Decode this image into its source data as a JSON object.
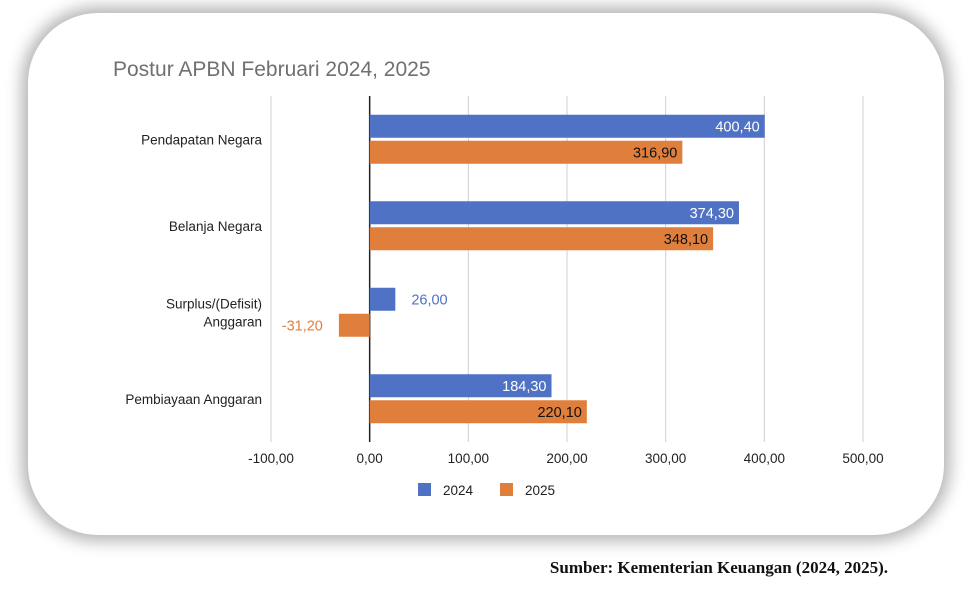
{
  "source_caption": "Sumber: Kementerian Keuangan (2024, 2025).",
  "chart_data": {
    "type": "bar",
    "orientation": "horizontal",
    "title": "Postur APBN Februari 2024, 2025",
    "categories": [
      "Pendapatan Negara",
      "Belanja Negara",
      "Surplus/(Defisit) Anggaran",
      "Pembiayaan Anggaran"
    ],
    "series": [
      {
        "name": "2024",
        "color": "#4f72c4",
        "values": [
          400.4,
          374.3,
          26.0,
          184.3
        ],
        "labels": [
          "400,40",
          "374,30",
          "26,00",
          "184,30"
        ]
      },
      {
        "name": "2025",
        "color": "#e07f3b",
        "values": [
          316.9,
          348.1,
          -31.2,
          220.1
        ],
        "labels": [
          "316,90",
          "348,10",
          "-31,20",
          "220,10"
        ]
      }
    ],
    "xlim": [
      -100,
      500
    ],
    "xticks": [
      -100,
      0,
      100,
      200,
      300,
      400,
      500
    ],
    "xtick_labels": [
      "-100,00",
      "0,00",
      "100,00",
      "200,00",
      "300,00",
      "400,00",
      "500,00"
    ],
    "grid": "vertical",
    "legend": "bottom"
  }
}
